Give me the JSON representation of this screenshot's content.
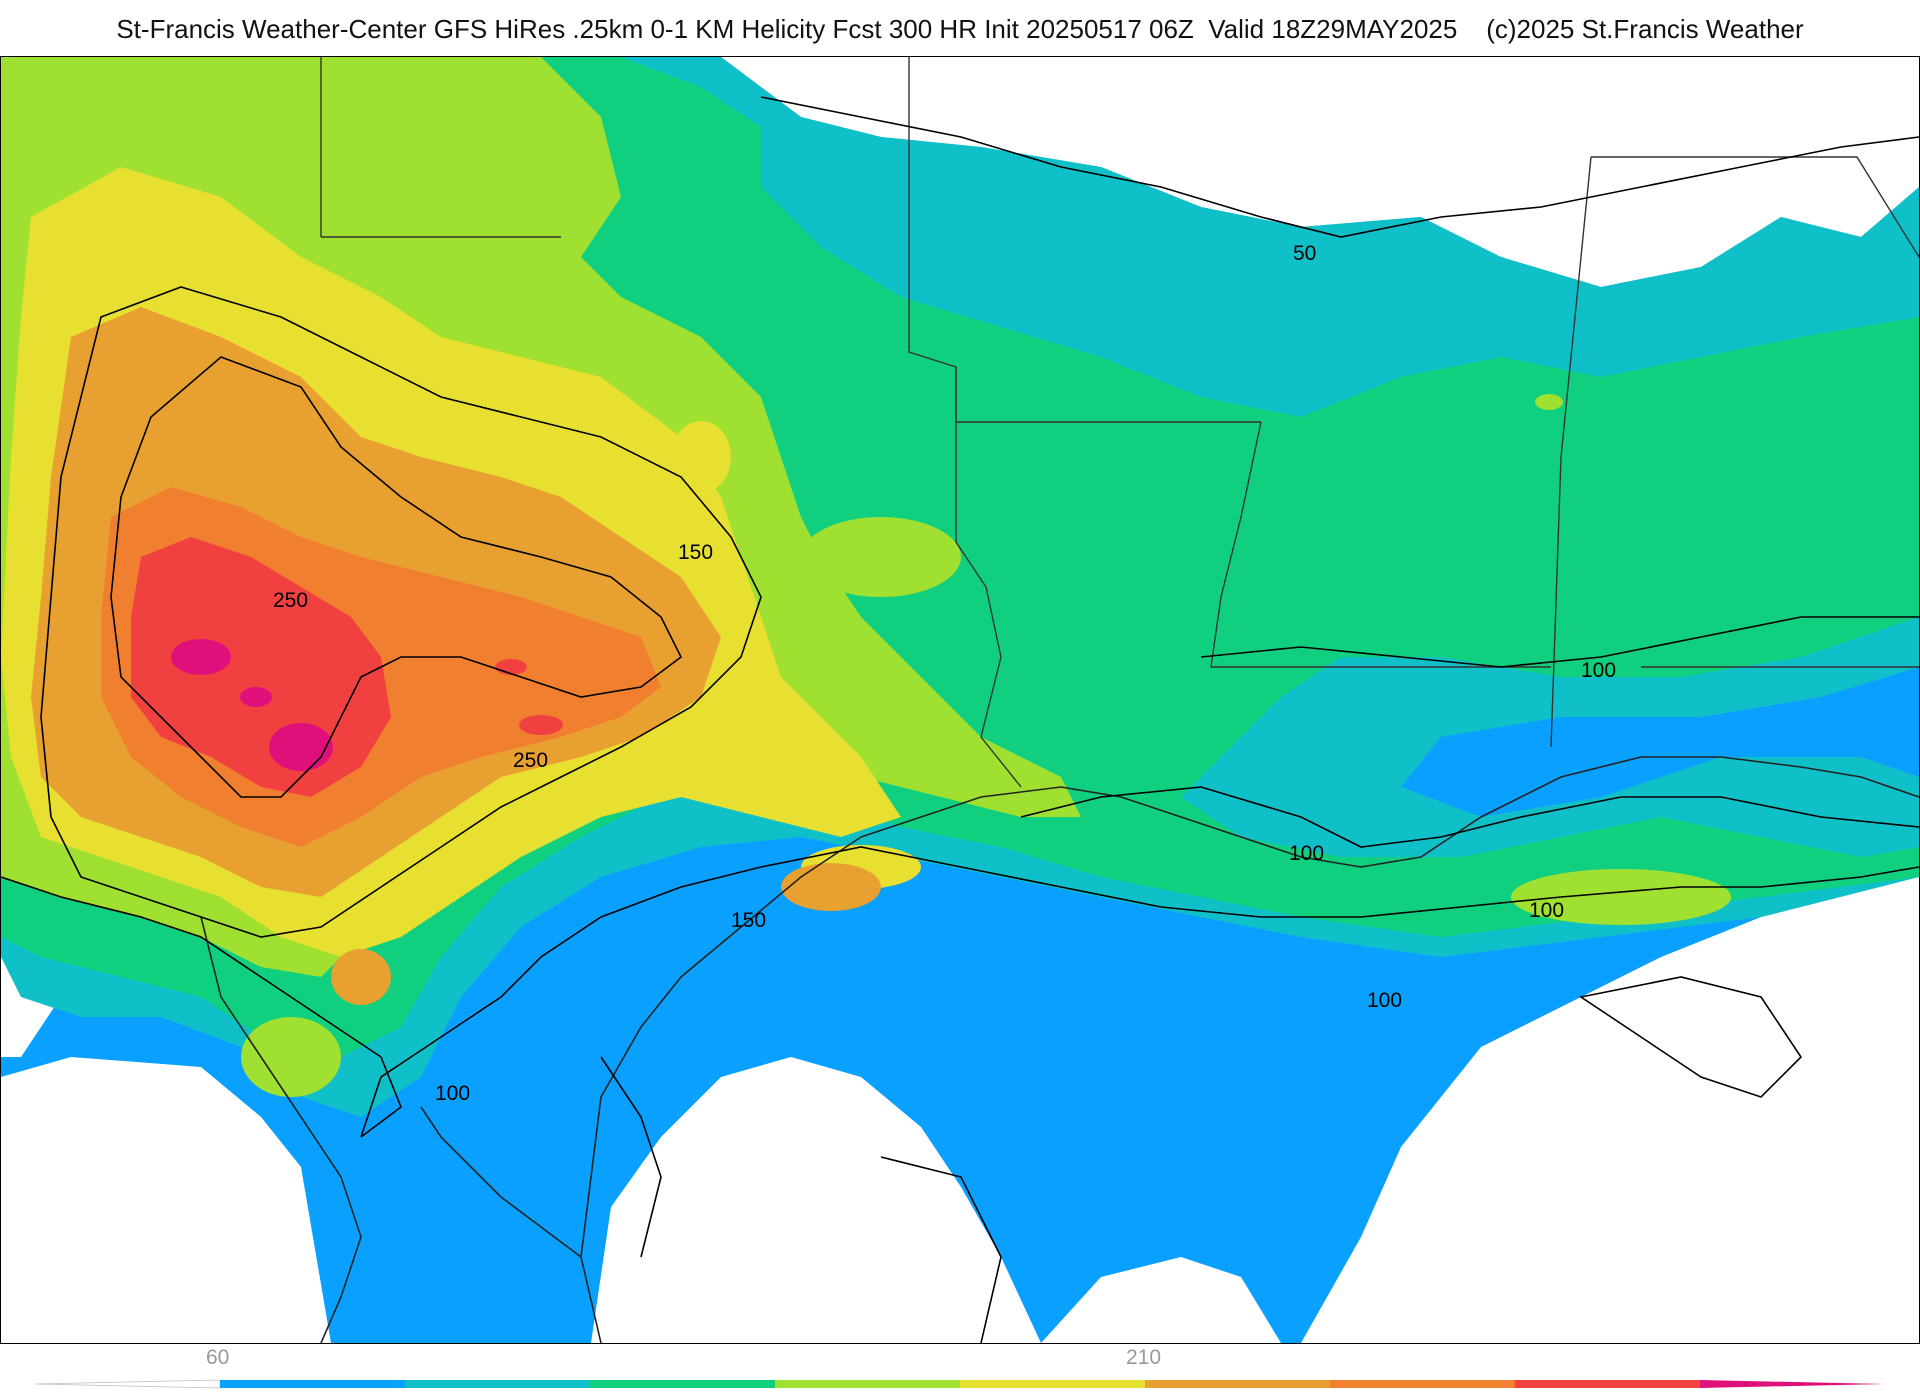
{
  "header": {
    "title": "St-Francis Weather-Center GFS HiRes .25km 0-1 KM Helicity Fcst 300 HR Init 20250517 06Z  Valid 18Z29MAY2025    (c)2025 St.Francis Weather"
  },
  "map": {
    "contour_labels": [
      "50",
      "150",
      "250",
      "250",
      "150",
      "100",
      "100",
      "100",
      "100",
      "100"
    ]
  },
  "legend": {
    "tick_labels": [
      "60",
      "210"
    ],
    "colors": [
      "#ffffff",
      "#0aa0ff",
      "#10c0c8",
      "#10d080",
      "#a0e030",
      "#e8e030",
      "#e8a030",
      "#f08030",
      "#f04040",
      "#e0107a"
    ]
  }
}
